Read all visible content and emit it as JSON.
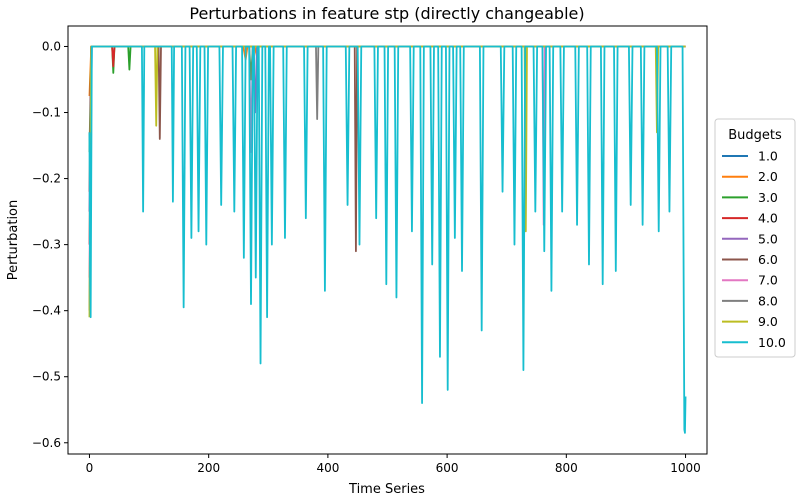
{
  "chart_data": {
    "type": "line",
    "title": "Perturbations in feature stp (directly changeable)",
    "xlabel": "Time Series",
    "ylabel": "Perturbation",
    "xlim": [
      -36,
      1036
    ],
    "ylim": [
      -0.617,
      0.031
    ],
    "xticks": [
      0,
      200,
      400,
      600,
      800,
      1000
    ],
    "xtick_labels": [
      "0",
      "200",
      "400",
      "600",
      "800",
      "1000"
    ],
    "yticks": [
      0.0,
      -0.1,
      -0.2,
      -0.3,
      -0.4,
      -0.5,
      -0.6
    ],
    "ytick_labels": [
      "0.0",
      "−0.1",
      "−0.2",
      "−0.3",
      "−0.4",
      "−0.5",
      "−0.6"
    ],
    "grid": false,
    "legend": {
      "title": "Budgets",
      "placement": "center-right-outside"
    },
    "colors": [
      "#1f77b4",
      "#ff7f0e",
      "#2ca02c",
      "#d62728",
      "#9467bd",
      "#8c564b",
      "#e377c2",
      "#7f7f7f",
      "#bcbd22",
      "#17becf"
    ],
    "series": [
      {
        "name": "1.0",
        "color": "#1f77b4",
        "points": [
          [
            0,
            -0.13
          ],
          [
            2,
            -0.18
          ],
          [
            4,
            0
          ],
          [
            1000,
            0
          ]
        ]
      },
      {
        "name": "2.0",
        "color": "#ff7f0e",
        "points": [
          [
            0,
            -0.075
          ],
          [
            3,
            0
          ],
          [
            258,
            0
          ],
          [
            262,
            -0.02
          ],
          [
            265,
            0
          ],
          [
            277,
            0
          ],
          [
            281,
            -0.015
          ],
          [
            284,
            0
          ],
          [
            1000,
            0
          ]
        ]
      },
      {
        "name": "3.0",
        "color": "#2ca02c",
        "points": [
          [
            0,
            -0.16
          ],
          [
            3,
            0
          ],
          [
            38,
            0
          ],
          [
            40,
            -0.04
          ],
          [
            42,
            0
          ],
          [
            65,
            0
          ],
          [
            67,
            -0.035
          ],
          [
            69,
            0
          ],
          [
            268,
            0
          ],
          [
            271,
            -0.05
          ],
          [
            274,
            0
          ],
          [
            1000,
            0
          ]
        ]
      },
      {
        "name": "4.0",
        "color": "#d62728",
        "points": [
          [
            0,
            -0.22
          ],
          [
            3,
            0
          ],
          [
            38,
            0
          ],
          [
            40,
            -0.03
          ],
          [
            42,
            0
          ],
          [
            1000,
            0
          ]
        ]
      },
      {
        "name": "5.0",
        "color": "#9467bd",
        "points": [
          [
            0,
            -0.25
          ],
          [
            3,
            0
          ],
          [
            275,
            0
          ],
          [
            278,
            -0.1
          ],
          [
            281,
            0
          ],
          [
            1000,
            0
          ]
        ]
      },
      {
        "name": "6.0",
        "color": "#8c564b",
        "points": [
          [
            0,
            -0.3
          ],
          [
            3,
            0
          ],
          [
            116,
            0
          ],
          [
            118,
            -0.14
          ],
          [
            120,
            0
          ],
          [
            445,
            0
          ],
          [
            447,
            -0.31
          ],
          [
            449,
            0
          ],
          [
            1000,
            0
          ]
        ]
      },
      {
        "name": "7.0",
        "color": "#e377c2",
        "points": [
          [
            0,
            -0.35
          ],
          [
            3,
            0
          ],
          [
            268,
            0
          ],
          [
            271,
            -0.16
          ],
          [
            274,
            0
          ],
          [
            760,
            0
          ],
          [
            762,
            -0.27
          ],
          [
            764,
            0
          ],
          [
            1000,
            0
          ]
        ]
      },
      {
        "name": "8.0",
        "color": "#7f7f7f",
        "points": [
          [
            0,
            -0.4
          ],
          [
            3,
            0
          ],
          [
            380,
            0
          ],
          [
            382,
            -0.11
          ],
          [
            384,
            0
          ],
          [
            1000,
            0
          ]
        ]
      },
      {
        "name": "9.0",
        "color": "#bcbd22",
        "points": [
          [
            0,
            -0.41
          ],
          [
            3,
            0
          ],
          [
            110,
            0
          ],
          [
            112,
            -0.12
          ],
          [
            114,
            0
          ],
          [
            730,
            0
          ],
          [
            732,
            -0.28
          ],
          [
            734,
            0
          ],
          [
            950,
            0
          ],
          [
            952,
            -0.13
          ],
          [
            954,
            0
          ],
          [
            1000,
            0
          ]
        ]
      },
      {
        "name": "10.0",
        "color": "#17becf",
        "points": [
          [
            0,
            -0.13
          ],
          [
            1,
            -0.35
          ],
          [
            2,
            -0.41
          ],
          [
            3,
            -0.2
          ],
          [
            4,
            0
          ],
          [
            88,
            0
          ],
          [
            90,
            -0.25
          ],
          [
            92,
            0
          ],
          [
            138,
            0
          ],
          [
            140,
            -0.235
          ],
          [
            142,
            0
          ],
          [
            155,
            0
          ],
          [
            158,
            -0.395
          ],
          [
            161,
            0
          ],
          [
            168,
            0
          ],
          [
            171,
            -0.29
          ],
          [
            174,
            0
          ],
          [
            180,
            0
          ],
          [
            183,
            -0.28
          ],
          [
            186,
            0
          ],
          [
            193,
            0
          ],
          [
            196,
            -0.3
          ],
          [
            199,
            0
          ],
          [
            218,
            0
          ],
          [
            221,
            -0.24
          ],
          [
            224,
            0
          ],
          [
            240,
            0
          ],
          [
            243,
            -0.25
          ],
          [
            246,
            0
          ],
          [
            256,
            0
          ],
          [
            259,
            -0.32
          ],
          [
            262,
            0
          ],
          [
            268,
            0
          ],
          [
            271,
            -0.39
          ],
          [
            274,
            0
          ],
          [
            276,
            0
          ],
          [
            279,
            -0.35
          ],
          [
            282,
            0
          ],
          [
            284,
            0
          ],
          [
            287,
            -0.48
          ],
          [
            290,
            0
          ],
          [
            295,
            0
          ],
          [
            298,
            -0.41
          ],
          [
            301,
            0
          ],
          [
            303,
            0
          ],
          [
            306,
            -0.3
          ],
          [
            309,
            0
          ],
          [
            325,
            0
          ],
          [
            328,
            -0.29
          ],
          [
            331,
            0
          ],
          [
            360,
            0
          ],
          [
            363,
            -0.26
          ],
          [
            366,
            0
          ],
          [
            392,
            0
          ],
          [
            395,
            -0.37
          ],
          [
            398,
            0
          ],
          [
            430,
            0
          ],
          [
            433,
            -0.24
          ],
          [
            436,
            0
          ],
          [
            450,
            0
          ],
          [
            453,
            -0.3
          ],
          [
            456,
            0
          ],
          [
            478,
            0
          ],
          [
            481,
            -0.26
          ],
          [
            484,
            0
          ],
          [
            495,
            0
          ],
          [
            498,
            -0.36
          ],
          [
            501,
            0
          ],
          [
            512,
            0
          ],
          [
            515,
            -0.38
          ],
          [
            518,
            0
          ],
          [
            538,
            0
          ],
          [
            541,
            -0.28
          ],
          [
            544,
            0
          ],
          [
            555,
            0
          ],
          [
            558,
            -0.54
          ],
          [
            561,
            0
          ],
          [
            572,
            0
          ],
          [
            575,
            -0.33
          ],
          [
            578,
            0
          ],
          [
            585,
            0
          ],
          [
            588,
            -0.47
          ],
          [
            591,
            0
          ],
          [
            598,
            0
          ],
          [
            601,
            -0.52
          ],
          [
            604,
            0
          ],
          [
            610,
            0
          ],
          [
            613,
            -0.29
          ],
          [
            616,
            0
          ],
          [
            622,
            0
          ],
          [
            625,
            -0.34
          ],
          [
            628,
            0
          ],
          [
            655,
            0
          ],
          [
            658,
            -0.43
          ],
          [
            661,
            0
          ],
          [
            690,
            0
          ],
          [
            693,
            -0.22
          ],
          [
            696,
            0
          ],
          [
            710,
            0
          ],
          [
            713,
            -0.3
          ],
          [
            716,
            0
          ],
          [
            725,
            0
          ],
          [
            728,
            -0.49
          ],
          [
            731,
            0
          ],
          [
            745,
            0
          ],
          [
            748,
            -0.25
          ],
          [
            751,
            0
          ],
          [
            760,
            0
          ],
          [
            763,
            -0.31
          ],
          [
            766,
            0
          ],
          [
            772,
            0
          ],
          [
            775,
            -0.37
          ],
          [
            778,
            0
          ],
          [
            790,
            0
          ],
          [
            793,
            -0.25
          ],
          [
            796,
            0
          ],
          [
            815,
            0
          ],
          [
            818,
            -0.27
          ],
          [
            821,
            0
          ],
          [
            835,
            0
          ],
          [
            838,
            -0.33
          ],
          [
            841,
            0
          ],
          [
            858,
            0
          ],
          [
            861,
            -0.36
          ],
          [
            864,
            0
          ],
          [
            880,
            0
          ],
          [
            883,
            -0.34
          ],
          [
            886,
            0
          ],
          [
            905,
            0
          ],
          [
            908,
            -0.24
          ],
          [
            911,
            0
          ],
          [
            925,
            0
          ],
          [
            928,
            -0.27
          ],
          [
            931,
            0
          ],
          [
            952,
            0
          ],
          [
            955,
            -0.28
          ],
          [
            958,
            0
          ],
          [
            970,
            0
          ],
          [
            973,
            -0.25
          ],
          [
            976,
            0
          ],
          [
            995,
            0
          ],
          [
            998,
            -0.58
          ],
          [
            999,
            -0.585
          ],
          [
            1000,
            -0.53
          ]
        ]
      }
    ]
  }
}
